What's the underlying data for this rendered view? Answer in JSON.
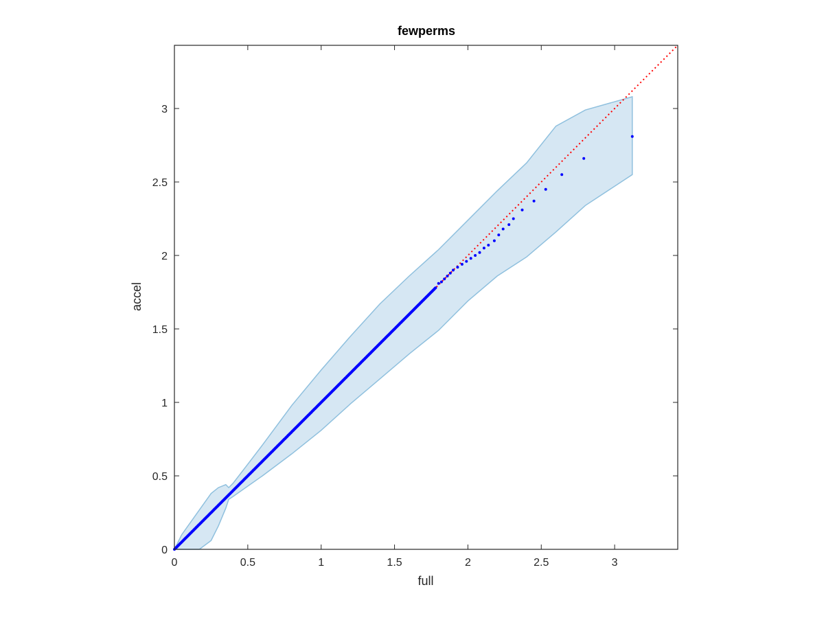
{
  "chart_data": {
    "type": "scatter",
    "title": "fewperms",
    "xlabel": "full",
    "ylabel": "accel",
    "xlim": [
      0,
      3.43
    ],
    "ylim": [
      0,
      3.43
    ],
    "xticks": [
      "0",
      "0.5",
      "1",
      "1.5",
      "2",
      "2.5",
      "3"
    ],
    "yticks": [
      "0",
      "0.5",
      "1",
      "1.5",
      "2",
      "2.5",
      "3"
    ],
    "xtick_values": [
      0,
      0.5,
      1,
      1.5,
      2,
      2.5,
      3
    ],
    "ytick_values": [
      0,
      0.5,
      1,
      1.5,
      2,
      2.5,
      3
    ],
    "grid": false,
    "colors": {
      "points": "#0000ff",
      "reference_line": "#ff0000",
      "band_fill": "#d6e7f3",
      "band_edge": "#8fc0de",
      "axes": "#262626"
    },
    "reference_line": {
      "style": "dotted",
      "from": [
        0,
        0
      ],
      "to": [
        3.43,
        3.43
      ]
    },
    "confidence_band": {
      "upper": [
        [
          0,
          0
        ],
        [
          0.05,
          0.1
        ],
        [
          0.1,
          0.17
        ],
        [
          0.15,
          0.24
        ],
        [
          0.2,
          0.31
        ],
        [
          0.25,
          0.38
        ],
        [
          0.3,
          0.42
        ],
        [
          0.35,
          0.44
        ],
        [
          0.37,
          0.42
        ],
        [
          0.4,
          0.45
        ],
        [
          0.5,
          0.58
        ],
        [
          0.6,
          0.71
        ],
        [
          0.8,
          0.98
        ],
        [
          1.0,
          1.22
        ],
        [
          1.2,
          1.45
        ],
        [
          1.4,
          1.67
        ],
        [
          1.6,
          1.86
        ],
        [
          1.8,
          2.04
        ],
        [
          2.0,
          2.24
        ],
        [
          2.2,
          2.44
        ],
        [
          2.4,
          2.63
        ],
        [
          2.6,
          2.88
        ],
        [
          2.8,
          2.99
        ],
        [
          3.12,
          3.08
        ]
      ],
      "lower": [
        [
          0,
          0
        ],
        [
          0.1,
          0
        ],
        [
          0.17,
          0
        ],
        [
          0.25,
          0.06
        ],
        [
          0.3,
          0.16
        ],
        [
          0.35,
          0.28
        ],
        [
          0.37,
          0.34
        ],
        [
          0.4,
          0.36
        ],
        [
          0.6,
          0.5
        ],
        [
          0.8,
          0.65
        ],
        [
          1.0,
          0.81
        ],
        [
          1.2,
          0.99
        ],
        [
          1.4,
          1.16
        ],
        [
          1.6,
          1.33
        ],
        [
          1.8,
          1.49
        ],
        [
          2.0,
          1.69
        ],
        [
          2.2,
          1.86
        ],
        [
          2.4,
          1.99
        ],
        [
          2.6,
          2.16
        ],
        [
          2.8,
          2.34
        ],
        [
          3.12,
          2.55
        ]
      ]
    },
    "points_dense_range": [
      0,
      1.78
    ],
    "points_sparse": [
      [
        1.8,
        1.81
      ],
      [
        1.82,
        1.82
      ],
      [
        1.84,
        1.84
      ],
      [
        1.86,
        1.86
      ],
      [
        1.88,
        1.88
      ],
      [
        1.9,
        1.9
      ],
      [
        1.93,
        1.92
      ],
      [
        1.96,
        1.94
      ],
      [
        1.99,
        1.96
      ],
      [
        2.02,
        1.98
      ],
      [
        2.05,
        2.0
      ],
      [
        2.08,
        2.02
      ],
      [
        2.11,
        2.05
      ],
      [
        2.14,
        2.07
      ],
      [
        2.18,
        2.1
      ],
      [
        2.21,
        2.14
      ],
      [
        2.24,
        2.18
      ],
      [
        2.28,
        2.21
      ],
      [
        2.31,
        2.25
      ],
      [
        2.37,
        2.31
      ],
      [
        2.45,
        2.37
      ],
      [
        2.53,
        2.45
      ],
      [
        2.64,
        2.55
      ],
      [
        2.79,
        2.66
      ],
      [
        3.12,
        2.81
      ]
    ]
  }
}
